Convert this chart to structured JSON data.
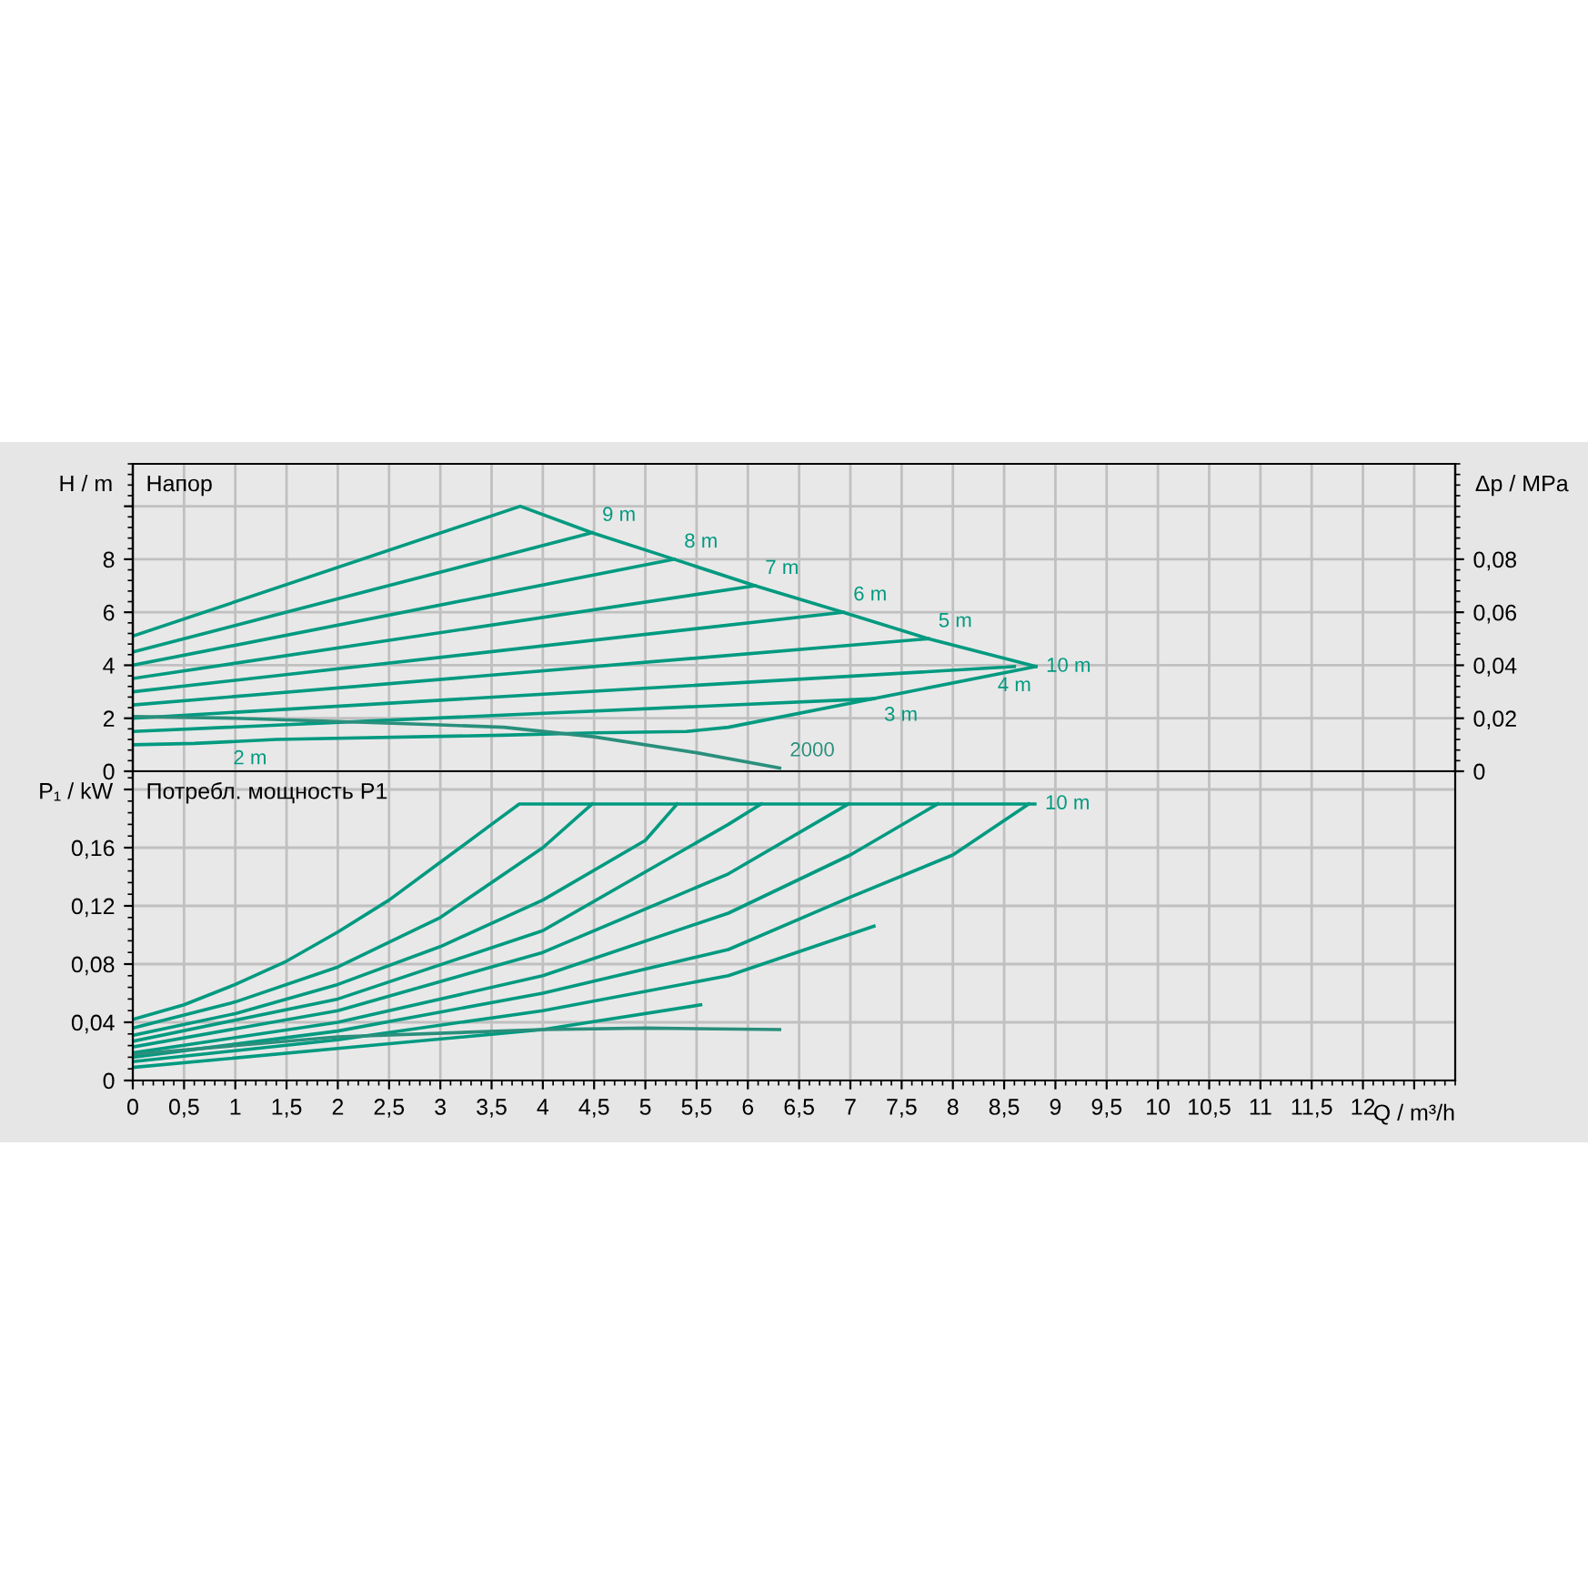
{
  "chart_data": [
    {
      "type": "line",
      "title": "Напор",
      "ylabel": "H / m",
      "y2label": "Δp / MPa",
      "xlim": [
        0,
        12.9
      ],
      "ylim": [
        0,
        11.6
      ],
      "y2lim": [
        0,
        0.116
      ],
      "xticks": [
        0,
        0.5,
        1,
        1.5,
        2,
        2.5,
        3,
        3.5,
        4,
        4.5,
        5,
        5.5,
        6,
        6.5,
        7,
        7.5,
        8,
        8.5,
        9,
        9.5,
        10,
        10.5,
        11,
        11.5,
        12,
        12.5
      ],
      "yticks": [
        0,
        2,
        4,
        6,
        8,
        {
          "value": 10,
          "label": null
        }
      ],
      "y2ticks": [
        0,
        {
          "value": 0.02,
          "label": "0,02"
        },
        {
          "value": 0.04,
          "label": "0,04"
        },
        {
          "value": 0.06,
          "label": "0,06"
        },
        {
          "value": 0.08,
          "label": "0,08"
        }
      ],
      "grid": true,
      "tick_labels": "y",
      "series": [
        {
          "name": "10 m",
          "color": "#009a80",
          "x": [
            0,
            3.78,
            4.48,
            5.28,
            6.07,
            6.93,
            7.76,
            8.81
          ],
          "values": [
            5.1,
            10,
            9.0,
            8.0,
            7.0,
            6.0,
            5.0,
            3.95
          ]
        },
        {
          "name": "2 m",
          "color": "#009a80",
          "x": [
            0,
            0.6,
            1.4,
            3.6,
            4.5,
            5.4,
            5.81,
            8.81
          ],
          "values": [
            1.0,
            1.05,
            1.2,
            1.36,
            1.45,
            1.5,
            1.66,
            3.95
          ]
        },
        {
          "name": "3 m",
          "color": "#009a80",
          "x": [
            0,
            7.23
          ],
          "values": [
            1.5,
            2.74
          ]
        },
        {
          "name": "4 m",
          "color": "#009a80",
          "x": [
            0,
            8.6
          ],
          "values": [
            2.0,
            3.95
          ]
        },
        {
          "name": "5 m",
          "color": "#009a80",
          "x": [
            0,
            7.76
          ],
          "values": [
            2.5,
            5.0
          ]
        },
        {
          "name": "6 m",
          "color": "#009a80",
          "x": [
            0,
            6.93
          ],
          "values": [
            3.0,
            6.0
          ]
        },
        {
          "name": "7 m",
          "color": "#009a80",
          "x": [
            0,
            6.07
          ],
          "values": [
            3.5,
            7.0
          ]
        },
        {
          "name": "8 m",
          "color": "#009a80",
          "x": [
            0,
            5.28
          ],
          "values": [
            4.0,
            8.0
          ]
        },
        {
          "name": "9 m",
          "color": "#009a80",
          "x": [
            0,
            4.48
          ],
          "values": [
            4.5,
            9.0
          ]
        },
        {
          "name": "2000",
          "color": "#2a8f7c",
          "x": [
            0,
            1,
            2,
            3,
            3.62,
            4.5,
            5.5,
            6.31
          ],
          "values": [
            2.07,
            2.0,
            1.88,
            1.75,
            1.66,
            1.3,
            0.7,
            0.12
          ]
        }
      ]
    },
    {
      "type": "line",
      "title": "Потребл. мощность P1",
      "ylabel": "P₁ / kW",
      "xlabel": "Q / m³/h",
      "xlim": [
        0,
        12.9
      ],
      "ylim": [
        0,
        0.2125
      ],
      "xticks": [
        0,
        {
          "value": 0.5,
          "label": "0,5"
        },
        1,
        {
          "value": 1.5,
          "label": "1,5"
        },
        2,
        {
          "value": 2.5,
          "label": "2,5"
        },
        3,
        {
          "value": 3.5,
          "label": "3,5"
        },
        4,
        {
          "value": 4.5,
          "label": "4,5"
        },
        5,
        {
          "value": 5.5,
          "label": "5,5"
        },
        6,
        {
          "value": 6.5,
          "label": "6,5"
        },
        7,
        {
          "value": 7.5,
          "label": "7,5"
        },
        8,
        {
          "value": 8.5,
          "label": "8,5"
        },
        9,
        {
          "value": 9.5,
          "label": "9,5"
        },
        10,
        {
          "value": 10.5,
          "label": "10,5"
        },
        11,
        {
          "value": 11.5,
          "label": "11,5"
        },
        12,
        {
          "value": 12.5,
          "label": null
        }
      ],
      "yticks": [
        0,
        {
          "value": 0.04,
          "label": "0,04"
        },
        {
          "value": 0.08,
          "label": "0,08"
        },
        {
          "value": 0.12,
          "label": "0,12"
        },
        {
          "value": 0.16,
          "label": "0,16"
        },
        {
          "value": 0.2,
          "label": null
        }
      ],
      "grid": true,
      "series": [
        {
          "name": "10 m",
          "color": "#009a80",
          "x": [
            0,
            0.5,
            1,
            1.5,
            2,
            2.5,
            3,
            3.5,
            3.77,
            8.8
          ],
          "values": [
            0.042,
            0.052,
            0.066,
            0.082,
            0.102,
            0.124,
            0.15,
            0.176,
            0.19,
            0.19
          ]
        },
        {
          "color": "#009a80",
          "x": [
            0,
            1,
            2,
            3,
            4,
            4.48
          ],
          "values": [
            0.036,
            0.054,
            0.078,
            0.112,
            0.16,
            0.19
          ]
        },
        {
          "color": "#009a80",
          "x": [
            0,
            1,
            2,
            3,
            4,
            5,
            5.31
          ],
          "values": [
            0.031,
            0.046,
            0.066,
            0.092,
            0.124,
            0.165,
            0.19
          ]
        },
        {
          "color": "#009a80",
          "x": [
            0,
            2,
            4,
            5.81,
            6.13
          ],
          "values": [
            0.027,
            0.056,
            0.103,
            0.176,
            0.19
          ]
        },
        {
          "color": "#009a80",
          "x": [
            0,
            2,
            4,
            5.81,
            6.98
          ],
          "values": [
            0.023,
            0.048,
            0.088,
            0.142,
            0.19
          ]
        },
        {
          "color": "#009a80",
          "x": [
            0,
            2,
            4,
            5.81,
            7,
            7.85
          ],
          "values": [
            0.019,
            0.04,
            0.072,
            0.115,
            0.155,
            0.19
          ]
        },
        {
          "color": "#009a80",
          "x": [
            0,
            2,
            4,
            5.81,
            7,
            8,
            8.74
          ],
          "values": [
            0.016,
            0.034,
            0.06,
            0.09,
            0.126,
            0.155,
            0.19
          ]
        },
        {
          "color": "#009a80",
          "x": [
            0,
            2,
            4,
            5.81,
            7.23
          ],
          "values": [
            0.013,
            0.028,
            0.048,
            0.072,
            0.106
          ]
        },
        {
          "color": "#009a80",
          "x": [
            0,
            2,
            4,
            5.54
          ],
          "values": [
            0.009,
            0.022,
            0.035,
            0.052
          ]
        },
        {
          "color": "#2a8f7c",
          "x": [
            0,
            2,
            4,
            5,
            6.31
          ],
          "values": [
            0.018,
            0.03,
            0.035,
            0.036,
            0.035
          ]
        }
      ]
    }
  ]
}
